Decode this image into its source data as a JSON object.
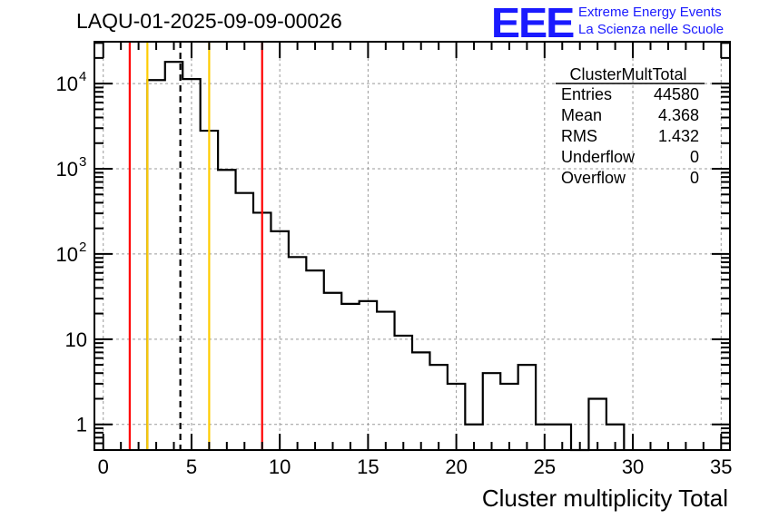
{
  "chart_data": {
    "type": "histogram",
    "title": "LAQU-01-2025-09-09-00026",
    "xlabel": "Cluster multiplicity Total",
    "ylabel": "",
    "xlim": [
      -0.5,
      35.5
    ],
    "ylim": [
      0.5,
      31000
    ],
    "yscale": "log",
    "grid": true,
    "x_ticks": [
      "0",
      "5",
      "10",
      "15",
      "20",
      "25",
      "30",
      "35"
    ],
    "y_ticks": [
      {
        "base": "1",
        "exp": ""
      },
      {
        "base": "10",
        "exp": ""
      },
      {
        "base": "10",
        "exp": "2"
      },
      {
        "base": "10",
        "exp": "3"
      },
      {
        "base": "10",
        "exp": "4"
      }
    ],
    "bins": [
      {
        "x": 3,
        "y": 11000
      },
      {
        "x": 4,
        "y": 18000
      },
      {
        "x": 5,
        "y": 11300
      },
      {
        "x": 6,
        "y": 2800
      },
      {
        "x": 7,
        "y": 970
      },
      {
        "x": 8,
        "y": 520
      },
      {
        "x": 9,
        "y": 305
      },
      {
        "x": 10,
        "y": 185
      },
      {
        "x": 11,
        "y": 92
      },
      {
        "x": 12,
        "y": 64
      },
      {
        "x": 13,
        "y": 35
      },
      {
        "x": 14,
        "y": 26
      },
      {
        "x": 15,
        "y": 28
      },
      {
        "x": 16,
        "y": 21
      },
      {
        "x": 17,
        "y": 11
      },
      {
        "x": 18,
        "y": 7
      },
      {
        "x": 19,
        "y": 5
      },
      {
        "x": 20,
        "y": 3
      },
      {
        "x": 21,
        "y": 1
      },
      {
        "x": 22,
        "y": 4
      },
      {
        "x": 23,
        "y": 3
      },
      {
        "x": 24,
        "y": 5
      },
      {
        "x": 25,
        "y": 1
      },
      {
        "x": 26,
        "y": 1
      },
      {
        "x": 27,
        "y": 0
      },
      {
        "x": 28,
        "y": 2
      },
      {
        "x": 29,
        "y": 1
      }
    ],
    "vertical_lines": [
      {
        "x": 1.5,
        "color": "#ff0000",
        "style": "solid"
      },
      {
        "x": 9.0,
        "color": "#ff0000",
        "style": "solid"
      },
      {
        "x": 2.5,
        "color": "#ffcc00",
        "style": "solid"
      },
      {
        "x": 6.0,
        "color": "#ffcc00",
        "style": "solid"
      },
      {
        "x": 4.368,
        "color": "#000000",
        "style": "dashed"
      }
    ],
    "stats": {
      "name": "ClusterMultTotal",
      "rows": [
        {
          "label": "Entries",
          "value": "44580"
        },
        {
          "label": "Mean",
          "value": "4.368"
        },
        {
          "label": "RMS",
          "value": "1.432"
        },
        {
          "label": "Underflow",
          "value": "0"
        },
        {
          "label": "Overflow",
          "value": "0"
        }
      ]
    }
  },
  "logo": {
    "text": "EEE",
    "line1": "Extreme Energy Events",
    "line2": "La Scienza nelle Scuole",
    "color": "#1a1aff"
  }
}
